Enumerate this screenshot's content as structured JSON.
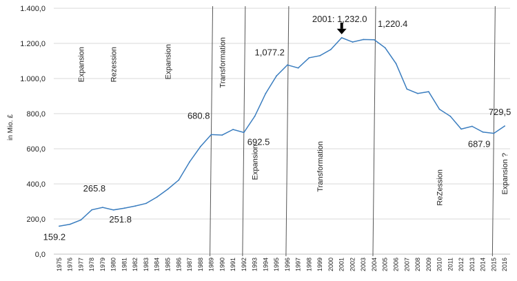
{
  "chart_data": {
    "type": "line",
    "ylabel": "in Mio. £",
    "ylim": [
      0,
      1400
    ],
    "y_ticks": [
      "0,0",
      "200,0",
      "400,0",
      "600,0",
      "800,0",
      "1.000,0",
      "1.200,0",
      "1.400,0"
    ],
    "x": [
      "1975",
      "1976",
      "1977",
      "1978",
      "1979",
      "1980",
      "1981",
      "1982",
      "1983",
      "1984",
      "1985",
      "1986",
      "1987",
      "1988",
      "1989",
      "1990",
      "1991",
      "1992",
      "1993",
      "1994",
      "1995",
      "1996",
      "1997",
      "1998",
      "1999",
      "2000",
      "2001",
      "2002",
      "2003",
      "2004",
      "2005",
      "2006",
      "2007",
      "2008",
      "2009",
      "2010",
      "2011",
      "2012",
      "2013",
      "2014",
      "2015",
      "2016"
    ],
    "series": [
      {
        "color": "#3a7dbf",
        "values": [
          159.2,
          170,
          195,
          252,
          265.8,
          251.8,
          262,
          274,
          289,
          325,
          370,
          422,
          525,
          612,
          680.8,
          678,
          710,
          692.5,
          785,
          915,
          1015,
          1077.2,
          1060,
          1118,
          1130,
          1165,
          1232.0,
          1208,
          1222,
          1220.4,
          1175,
          1085,
          940,
          915,
          925,
          825,
          785,
          712,
          728,
          695,
          687.9,
          729.5
        ]
      }
    ],
    "data_labels": [
      {
        "text": "159.2",
        "year": "1975",
        "value": 159.2
      },
      {
        "text": "265.8",
        "year": "1979",
        "value": 265.8
      },
      {
        "text": "251.8",
        "year": "1980",
        "value": 251.8
      },
      {
        "text": "680.8",
        "year": "1989",
        "value": 680.8
      },
      {
        "text": "692.5",
        "year": "1992",
        "value": 692.5
      },
      {
        "text": "1,077.2",
        "year": "1996",
        "value": 1077.2
      },
      {
        "text": "2001: 1,232.0",
        "year": "2001",
        "value": 1232.0
      },
      {
        "text": "1,220.4",
        "year": "2004",
        "value": 1220.4
      },
      {
        "text": "687.9",
        "year": "2015",
        "value": 687.9
      },
      {
        "text": "729,5",
        "year": "2016",
        "value": 729.5
      }
    ],
    "dividers": [
      "1989",
      "1992",
      "1996",
      "2004",
      "2015"
    ],
    "phase_labels": [
      {
        "text": "Expansion",
        "year": "1977"
      },
      {
        "text": "Rezession",
        "year": "1980"
      },
      {
        "text": "Expansion",
        "year": "1985"
      },
      {
        "text": "Transformation",
        "year": "1990"
      },
      {
        "text": "Expansion",
        "year": "1993"
      },
      {
        "text": "Transformation",
        "year": "1999"
      },
      {
        "text": "ReZession",
        "year": "2010"
      },
      {
        "text": "Expansion   ?",
        "year": "2016"
      }
    ],
    "grid": true
  }
}
